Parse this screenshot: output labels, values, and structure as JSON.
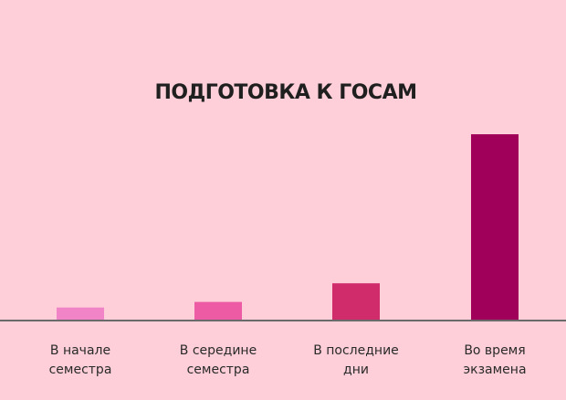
{
  "chart_data": {
    "type": "bar",
    "title": "ПОДГОТОВКА К ГОСАМ",
    "categories": [
      [
        "В начале",
        "семестра"
      ],
      [
        "В середине",
        "семестра"
      ],
      [
        "В последние",
        "дни"
      ],
      [
        "Во время",
        "экзамена"
      ]
    ],
    "values": [
      7,
      10,
      20,
      100
    ],
    "colors": [
      "#f184c6",
      "#ec5ba4",
      "#d02c6c",
      "#a0005a"
    ],
    "axis_color": "#6a6a6a",
    "grid": false,
    "legend": "none"
  }
}
